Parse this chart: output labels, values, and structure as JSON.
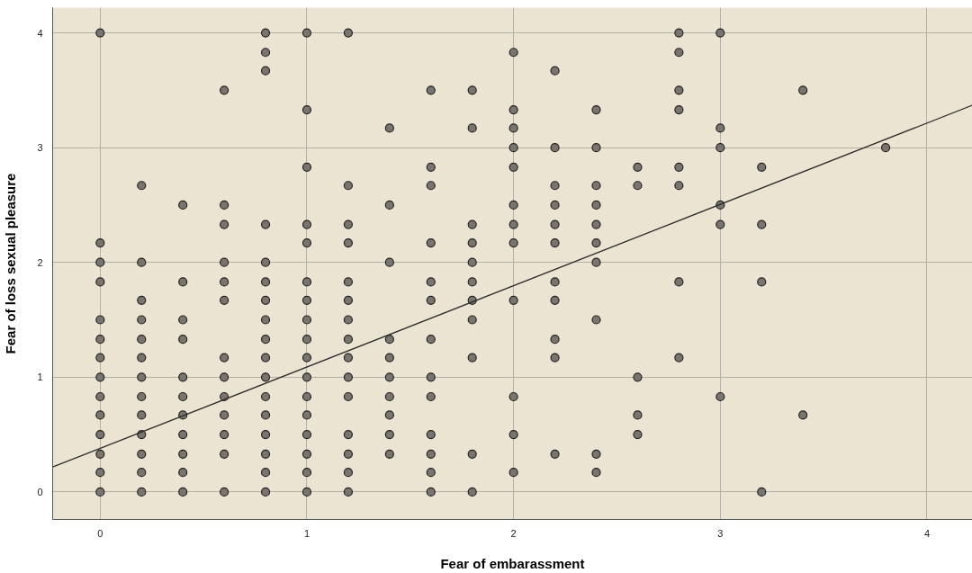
{
  "chart_data": {
    "type": "scatter",
    "xlabel": "Fear of embarassment",
    "ylabel": "Fear of loss sexual pleasure",
    "xlim": [
      -0.23,
      4.22
    ],
    "ylim": [
      -0.24,
      4.22
    ],
    "xticks": [
      0,
      1,
      2,
      3,
      4
    ],
    "yticks": [
      0,
      1,
      2,
      3,
      4
    ],
    "grid": true,
    "series": [
      {
        "color": "#7a746e",
        "marker": "circle",
        "x": [
          0,
          0,
          0,
          0,
          0,
          0,
          0,
          0,
          0,
          0,
          0,
          0,
          0,
          0,
          0.2,
          0.2,
          0.2,
          0.2,
          0.2,
          0.2,
          0.2,
          0.2,
          0.2,
          0.2,
          0.2,
          0.2,
          0.2,
          0.4,
          0.4,
          0.4,
          0.4,
          0.4,
          0.4,
          0.4,
          0.4,
          0.4,
          0.4,
          0.4,
          0.6,
          0.6,
          0.6,
          0.6,
          0.6,
          0.6,
          0.6,
          0.6,
          0.6,
          0.6,
          0.6,
          0.6,
          0.6,
          0.8,
          0.8,
          0.8,
          0.8,
          0.8,
          0.8,
          0.8,
          0.8,
          0.8,
          0.8,
          0.8,
          0.8,
          0.8,
          0.8,
          0.8,
          0.8,
          0.8,
          1,
          1,
          1,
          1,
          1,
          1,
          1,
          1,
          1,
          1,
          1,
          1,
          1,
          1,
          1,
          1,
          1,
          1.2,
          1.2,
          1.2,
          1.2,
          1.2,
          1.2,
          1.2,
          1.2,
          1.2,
          1.2,
          1.2,
          1.2,
          1.2,
          1.2,
          1.2,
          1.4,
          1.4,
          1.4,
          1.4,
          1.4,
          1.4,
          1.4,
          1.4,
          1.4,
          1.4,
          1.6,
          1.6,
          1.6,
          1.6,
          1.6,
          1.6,
          1.6,
          1.6,
          1.6,
          1.6,
          1.6,
          1.6,
          1.6,
          1.8,
          1.8,
          1.8,
          1.8,
          1.8,
          1.8,
          1.8,
          1.8,
          1.8,
          1.8,
          1.8,
          2,
          2,
          2,
          2,
          2,
          2,
          2,
          2,
          2,
          2,
          2,
          2,
          2.2,
          2.2,
          2.2,
          2.2,
          2.2,
          2.2,
          2.2,
          2.2,
          2.2,
          2.2,
          2.2,
          2.4,
          2.4,
          2.4,
          2.4,
          2.4,
          2.4,
          2.4,
          2.4,
          2.4,
          2.4,
          2.6,
          2.6,
          2.6,
          2.6,
          2.6,
          2.8,
          2.8,
          2.8,
          2.8,
          2.8,
          2.8,
          2.8,
          2.8,
          3,
          3,
          3,
          3,
          3,
          3,
          3.2,
          3.2,
          3.2,
          3.2,
          3.4,
          3.4,
          3.8
        ],
        "values": [
          4,
          2.17,
          2,
          1.83,
          1.5,
          1.33,
          1.17,
          1,
          0.83,
          0.67,
          0.5,
          0.33,
          0.17,
          0,
          2.67,
          2,
          1.67,
          1.5,
          1.33,
          1.17,
          1,
          0.83,
          0.67,
          0.5,
          0.33,
          0.17,
          0,
          2.5,
          1.83,
          1.5,
          1.33,
          1,
          0.83,
          0.67,
          0.5,
          0.33,
          0.17,
          0,
          3.5,
          2.5,
          2.33,
          2,
          1.83,
          1.67,
          1.17,
          1,
          0.83,
          0.67,
          0.5,
          0.33,
          0,
          4,
          3.83,
          3.67,
          2.33,
          2,
          1.83,
          1.67,
          1.5,
          1.33,
          1.17,
          1,
          0.83,
          0.67,
          0.5,
          0.33,
          0.17,
          0,
          4,
          3.33,
          2.83,
          2.33,
          2.17,
          1.83,
          1.67,
          1.5,
          1.33,
          1.17,
          1,
          0.83,
          0.67,
          0.5,
          0.33,
          0.17,
          0,
          4,
          2.67,
          2.33,
          2.17,
          1.83,
          1.67,
          1.5,
          1.33,
          1.17,
          1,
          0.83,
          0.5,
          0.33,
          0.17,
          0,
          3.17,
          2.5,
          2,
          1.33,
          1.17,
          1,
          0.83,
          0.67,
          0.5,
          0.33,
          3.5,
          2.83,
          2.67,
          2.17,
          1.83,
          1.67,
          1.33,
          1,
          0.83,
          0.5,
          0.33,
          0.17,
          0,
          3.5,
          3.17,
          2.33,
          2.17,
          2,
          1.83,
          1.67,
          1.5,
          1.17,
          0.33,
          0,
          3.83,
          3.33,
          3.17,
          3,
          2.83,
          2.5,
          2.33,
          2.17,
          1.67,
          0.83,
          0.5,
          0.17,
          3.67,
          3,
          2.67,
          2.5,
          2.33,
          2.17,
          1.83,
          1.67,
          1.33,
          1.17,
          0.33,
          3.33,
          3,
          2.67,
          2.5,
          2.33,
          2.17,
          2,
          1.5,
          0.33,
          0.17,
          2.83,
          2.67,
          1,
          0.67,
          0.5,
          4,
          3.83,
          3.5,
          3.33,
          2.83,
          2.67,
          1.83,
          1.17,
          4,
          3.17,
          3,
          2.5,
          2.33,
          0.83,
          2.83,
          2.33,
          1.83,
          0,
          3.5,
          0.67,
          3
        ]
      },
      {
        "type": "line",
        "color": "#2b2b2b",
        "x": [
          -0.23,
          4.22
        ],
        "values": [
          0.217,
          3.37
        ]
      }
    ]
  }
}
